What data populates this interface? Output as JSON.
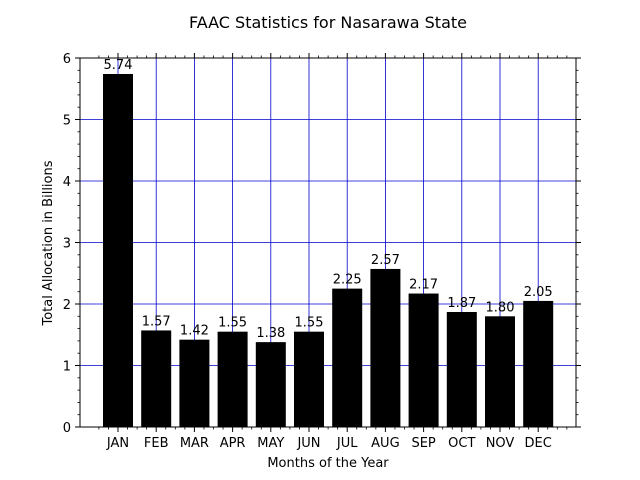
{
  "chart_data": {
    "type": "bar",
    "title": "FAAC Statistics for Nasarawa State",
    "xlabel": "Months of the Year",
    "ylabel": "Total Allocation in Billions",
    "categories": [
      "JAN",
      "FEB",
      "MAR",
      "APR",
      "MAY",
      "JUN",
      "JUL",
      "AUG",
      "SEP",
      "OCT",
      "NOV",
      "DEC"
    ],
    "values": [
      5.74,
      1.57,
      1.42,
      1.55,
      1.38,
      1.55,
      2.25,
      2.57,
      2.17,
      1.87,
      1.8,
      2.05
    ],
    "data_labels": [
      "5.74",
      "1.57",
      "1.42",
      "1.55",
      "1.38",
      "1.55",
      "2.25",
      "2.57",
      "2.17",
      "1.87",
      "1.80",
      "2.05"
    ],
    "ylim": [
      0,
      6
    ],
    "yticks": [
      0,
      1,
      2,
      3,
      4,
      5,
      6
    ],
    "grid": true,
    "colors": {
      "bar": "#000000",
      "grid": "#0000cc",
      "axis": "#000000"
    }
  }
}
